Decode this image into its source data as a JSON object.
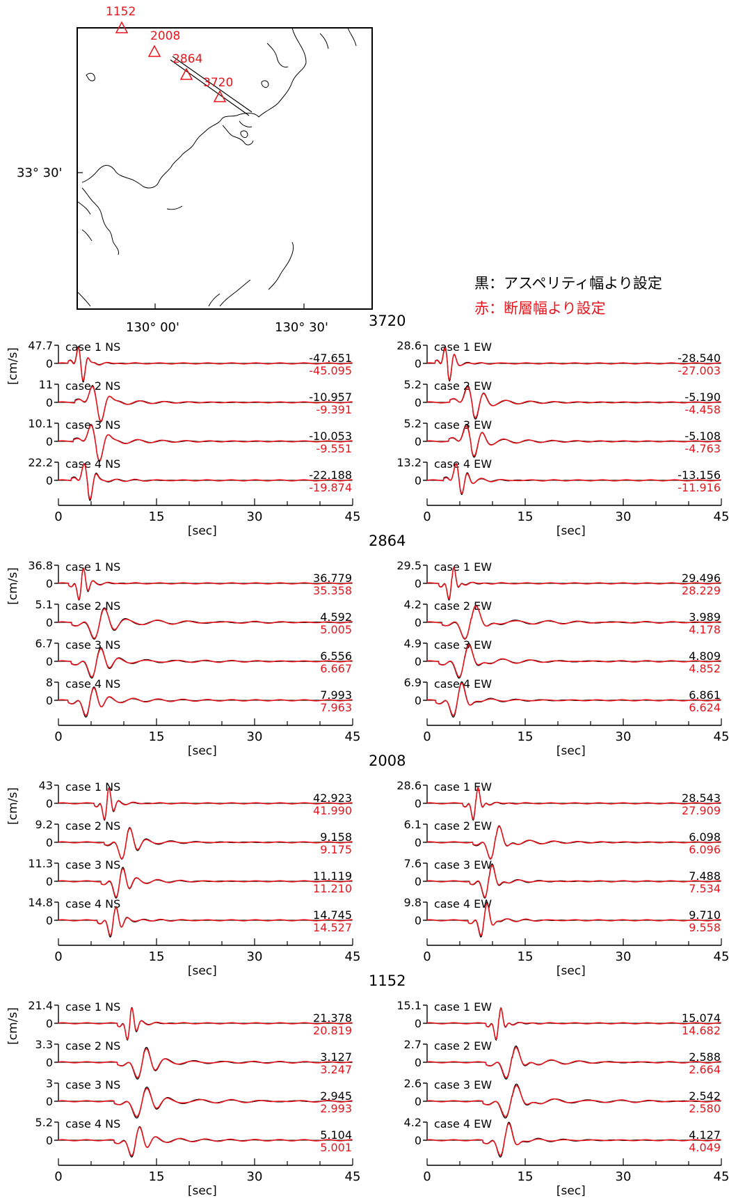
{
  "map": {
    "lat_label": "33° 30'",
    "lon_labels": [
      "130° 00'",
      "130° 30'"
    ],
    "stations": [
      "1152",
      "2008",
      "2864",
      "3720"
    ]
  },
  "legend": {
    "black": "黒：アスペリティ幅より設定",
    "red": "赤：断層幅より設定",
    "black_color": "#000000",
    "red_color": "#e8141c"
  },
  "chart_data": {
    "type": "line",
    "xlabel": "[sec]",
    "ylabel": "[cm/s]",
    "xlim": [
      0,
      45
    ],
    "xticks": [
      "0",
      "15",
      "30",
      "45"
    ],
    "grid": false,
    "stations": [
      {
        "name": "3720",
        "components": [
          {
            "dir": "NS",
            "cases": [
              {
                "label": "case 1 NS",
                "ymax": "47.7",
                "black_peak": "-47.651",
                "red_peak": "-45.095",
                "peak_time": 3.5,
                "duration_scale": 0.8
              },
              {
                "label": "case 2 NS",
                "ymax": "11",
                "black_peak": "-10.957",
                "red_peak": "-9.391",
                "peak_time": 6.0,
                "duration_scale": 1.4
              },
              {
                "label": "case 3 NS",
                "ymax": "10.1",
                "black_peak": "-10.053",
                "red_peak": "-9.551",
                "peak_time": 5.8,
                "duration_scale": 1.4
              },
              {
                "label": "case 4 NS",
                "ymax": "22.2",
                "black_peak": "-22.188",
                "red_peak": "-19.874",
                "peak_time": 4.5,
                "duration_scale": 1.0
              }
            ]
          },
          {
            "dir": "EW",
            "cases": [
              {
                "label": "case 1 EW",
                "ymax": "28.6",
                "black_peak": "-28.540",
                "red_peak": "-27.003",
                "peak_time": 3.2,
                "duration_scale": 0.8
              },
              {
                "label": "case 2 EW",
                "ymax": "5.2",
                "black_peak": "-5.190",
                "red_peak": "-4.458",
                "peak_time": 7.0,
                "duration_scale": 1.4
              },
              {
                "label": "case 3 EW",
                "ymax": "5.2",
                "black_peak": "-5.108",
                "red_peak": "-4.763",
                "peak_time": 6.8,
                "duration_scale": 1.4
              },
              {
                "label": "case 4 EW",
                "ymax": "13.2",
                "black_peak": "-13.156",
                "red_peak": "-11.916",
                "peak_time": 5.0,
                "duration_scale": 1.0
              }
            ]
          }
        ]
      },
      {
        "name": "2864",
        "components": [
          {
            "dir": "NS",
            "cases": [
              {
                "label": "case 1 NS",
                "ymax": "36.8",
                "black_peak": "36.779",
                "red_peak": "35.358",
                "peak_time": 3.6,
                "duration_scale": 0.8
              },
              {
                "label": "case 2 NS",
                "ymax": "5.1",
                "black_peak": "4.592",
                "red_peak": "5.005",
                "peak_time": 6.5,
                "duration_scale": 1.8
              },
              {
                "label": "case 3 NS",
                "ymax": "6.7",
                "black_peak": "6.556",
                "red_peak": "6.667",
                "peak_time": 6.0,
                "duration_scale": 1.6
              },
              {
                "label": "case 4 NS",
                "ymax": "8",
                "black_peak": "7.993",
                "red_peak": "7.963",
                "peak_time": 5.0,
                "duration_scale": 1.4
              }
            ]
          },
          {
            "dir": "EW",
            "cases": [
              {
                "label": "case 1 EW",
                "ymax": "29.5",
                "black_peak": "29.496",
                "red_peak": "28.229",
                "peak_time": 3.8,
                "duration_scale": 0.8
              },
              {
                "label": "case 2 EW",
                "ymax": "4.2",
                "black_peak": "3.989",
                "red_peak": "4.178",
                "peak_time": 6.8,
                "duration_scale": 1.8
              },
              {
                "label": "case 3 EW",
                "ymax": "4.9",
                "black_peak": "4.809",
                "red_peak": "4.852",
                "peak_time": 5.8,
                "duration_scale": 1.6
              },
              {
                "label": "case 4 EW",
                "ymax": "6.9",
                "black_peak": "6.861",
                "red_peak": "6.624",
                "peak_time": 4.8,
                "duration_scale": 1.4
              }
            ]
          }
        ]
      },
      {
        "name": "2008",
        "components": [
          {
            "dir": "NS",
            "cases": [
              {
                "label": "case 1 NS",
                "ymax": "43",
                "black_peak": "42.923",
                "red_peak": "41.990",
                "peak_time": 7.5,
                "duration_scale": 0.8
              },
              {
                "label": "case 2 NS",
                "ymax": "9.2",
                "black_peak": "9.158",
                "red_peak": "9.175",
                "peak_time": 10.5,
                "duration_scale": 1.4
              },
              {
                "label": "case 3 NS",
                "ymax": "11.3",
                "black_peak": "11.119",
                "red_peak": "11.210",
                "peak_time": 9.5,
                "duration_scale": 1.2
              },
              {
                "label": "case 4 NS",
                "ymax": "14.8",
                "black_peak": "14.745",
                "red_peak": "14.527",
                "peak_time": 8.5,
                "duration_scale": 1.0
              }
            ]
          },
          {
            "dir": "EW",
            "cases": [
              {
                "label": "case 1 EW",
                "ymax": "28.6",
                "black_peak": "28.543",
                "red_peak": "27.909",
                "peak_time": 7.5,
                "duration_scale": 0.8
              },
              {
                "label": "case 2 EW",
                "ymax": "6.1",
                "black_peak": "6.098",
                "red_peak": "6.096",
                "peak_time": 10.5,
                "duration_scale": 1.4
              },
              {
                "label": "case 3 EW",
                "ymax": "7.6",
                "black_peak": "7.488",
                "red_peak": "7.534",
                "peak_time": 9.5,
                "duration_scale": 1.2
              },
              {
                "label": "case 4 EW",
                "ymax": "9.8",
                "black_peak": "9.710",
                "red_peak": "9.558",
                "peak_time": 8.8,
                "duration_scale": 1.0
              }
            ]
          }
        ]
      },
      {
        "name": "1152",
        "components": [
          {
            "dir": "NS",
            "cases": [
              {
                "label": "case 1 NS",
                "ymax": "21.4",
                "black_peak": "21.378",
                "red_peak": "20.819",
                "peak_time": 11.0,
                "duration_scale": 0.8
              },
              {
                "label": "case 2 NS",
                "ymax": "3.3",
                "black_peak": "3.127",
                "red_peak": "3.247",
                "peak_time": 13.0,
                "duration_scale": 1.6
              },
              {
                "label": "case 3 NS",
                "ymax": "3",
                "black_peak": "2.945",
                "red_peak": "2.993",
                "peak_time": 13.0,
                "duration_scale": 1.8
              },
              {
                "label": "case 4 NS",
                "ymax": "5.2",
                "black_peak": "5.104",
                "red_peak": "5.001",
                "peak_time": 12.0,
                "duration_scale": 1.4
              }
            ]
          },
          {
            "dir": "EW",
            "cases": [
              {
                "label": "case 1 EW",
                "ymax": "15.1",
                "black_peak": "15.074",
                "red_peak": "14.682",
                "peak_time": 11.0,
                "duration_scale": 0.8
              },
              {
                "label": "case 2 EW",
                "ymax": "2.7",
                "black_peak": "2.588",
                "red_peak": "2.664",
                "peak_time": 13.0,
                "duration_scale": 1.6
              },
              {
                "label": "case 3 EW",
                "ymax": "2.6",
                "black_peak": "2.542",
                "red_peak": "2.580",
                "peak_time": 13.0,
                "duration_scale": 1.8
              },
              {
                "label": "case 4 EW",
                "ymax": "4.2",
                "black_peak": "4.127",
                "red_peak": "4.049",
                "peak_time": 12.0,
                "duration_scale": 1.4
              }
            ]
          }
        ]
      }
    ]
  }
}
